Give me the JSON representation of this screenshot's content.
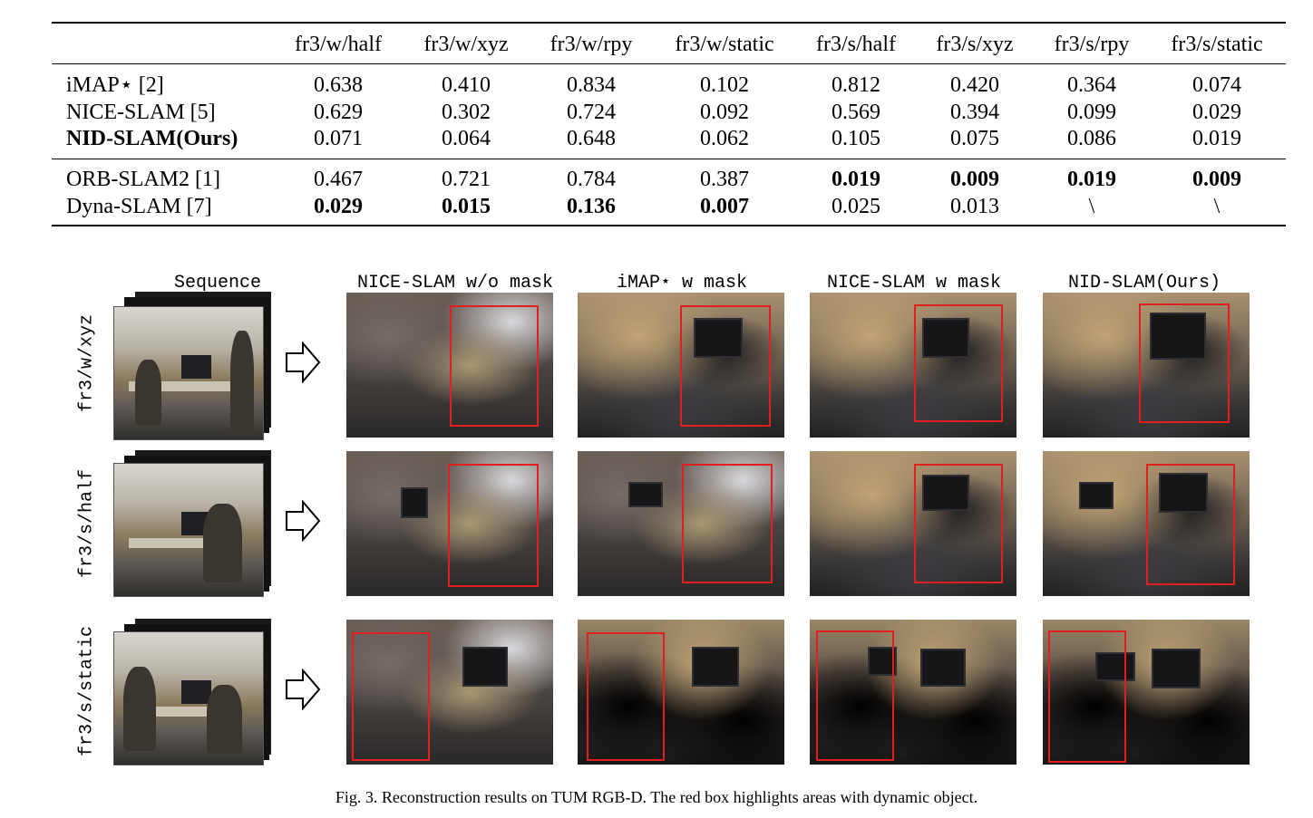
{
  "table": {
    "columns": [
      "fr3/w/half",
      "fr3/w/xyz",
      "fr3/w/rpy",
      "fr3/w/static",
      "fr3/s/half",
      "fr3/s/xyz",
      "fr3/s/rpy",
      "fr3/s/static"
    ],
    "group1": [
      {
        "method": "iMAP⋆ [2]",
        "values": [
          "0.638",
          "0.410",
          "0.834",
          "0.102",
          "0.812",
          "0.420",
          "0.364",
          "0.074"
        ]
      },
      {
        "method": "NICE-SLAM [5]",
        "values": [
          "0.629",
          "0.302",
          "0.724",
          "0.092",
          "0.569",
          "0.394",
          "0.099",
          "0.029"
        ]
      },
      {
        "method": "NID-SLAM(Ours)",
        "values": [
          "0.071",
          "0.064",
          "0.648",
          "0.062",
          "0.105",
          "0.075",
          "0.086",
          "0.019"
        ]
      }
    ],
    "group2": [
      {
        "method": "ORB-SLAM2 [1]",
        "values": [
          "0.467",
          "0.721",
          "0.784",
          "0.387",
          "0.019",
          "0.009",
          "0.019",
          "0.009"
        ]
      },
      {
        "method": "Dyna-SLAM [7]",
        "values": [
          "0.029",
          "0.015",
          "0.136",
          "0.007",
          "0.025",
          "0.013",
          "\\",
          "\\"
        ]
      }
    ]
  },
  "figure": {
    "column_headers": [
      "Sequence",
      "NICE-SLAM w/o mask",
      "iMAP⋆ w mask",
      "NICE-SLAM w mask",
      "NID-SLAM(Ours)"
    ],
    "row_labels": [
      "fr3/w/xyz",
      "fr3/s/half",
      "fr3/s/static"
    ],
    "caption": "Fig. 3.  Reconstruction results on TUM RGB-D. The red box highlights areas with dynamic object.",
    "highlight_color": "#e02020"
  }
}
